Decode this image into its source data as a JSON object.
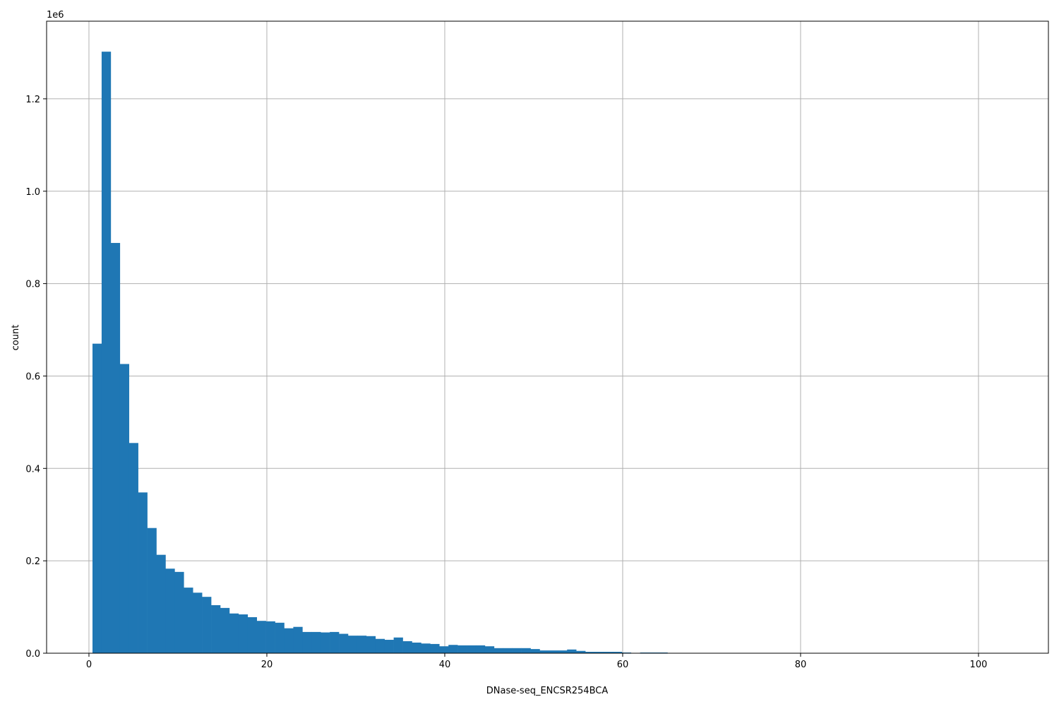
{
  "chart_data": {
    "type": "histogram",
    "title": "",
    "xlabel": "DNase-seq_ENCSR254BCA",
    "ylabel": "count",
    "y_offset_label": "1e6",
    "xlim": [
      -4.76,
      107.86
    ],
    "ylim": [
      0,
      1368000
    ],
    "grid": true,
    "bar_color": "#1f77b4",
    "bin_start": 0.4,
    "bin_width": 1.026,
    "x_ticks": [
      0,
      20,
      40,
      60,
      80,
      100
    ],
    "x_tick_labels": [
      "0",
      "20",
      "40",
      "60",
      "80",
      "100"
    ],
    "y_ticks": [
      0,
      200000,
      400000,
      600000,
      800000,
      1000000,
      1200000
    ],
    "y_tick_labels": [
      "0.0",
      "0.2",
      "0.4",
      "0.6",
      "0.8",
      "1.0",
      "1.2"
    ],
    "counts": [
      670000,
      1302000,
      888000,
      626000,
      455000,
      348000,
      271000,
      213000,
      183000,
      176000,
      142000,
      131000,
      122000,
      104000,
      98000,
      86000,
      84000,
      78000,
      70000,
      69000,
      66000,
      54000,
      57000,
      46000,
      46000,
      45000,
      46000,
      42000,
      38000,
      38000,
      37000,
      31000,
      29000,
      34000,
      26000,
      23000,
      21000,
      20000,
      15000,
      18000,
      17000,
      17000,
      17000,
      15000,
      11000,
      11000,
      11000,
      11000,
      9000,
      6000,
      6000,
      6000,
      8000,
      5000,
      3000,
      3000,
      3000,
      3000,
      1500,
      500,
      1500,
      1500,
      1500,
      0,
      0,
      0,
      0,
      0,
      0,
      0,
      0,
      0,
      0,
      0,
      0,
      0,
      0,
      0,
      0,
      0,
      0,
      0,
      0,
      0,
      0,
      0,
      0,
      0,
      0,
      0,
      0,
      0,
      0,
      0,
      0,
      0,
      0,
      0,
      0,
      0
    ]
  }
}
